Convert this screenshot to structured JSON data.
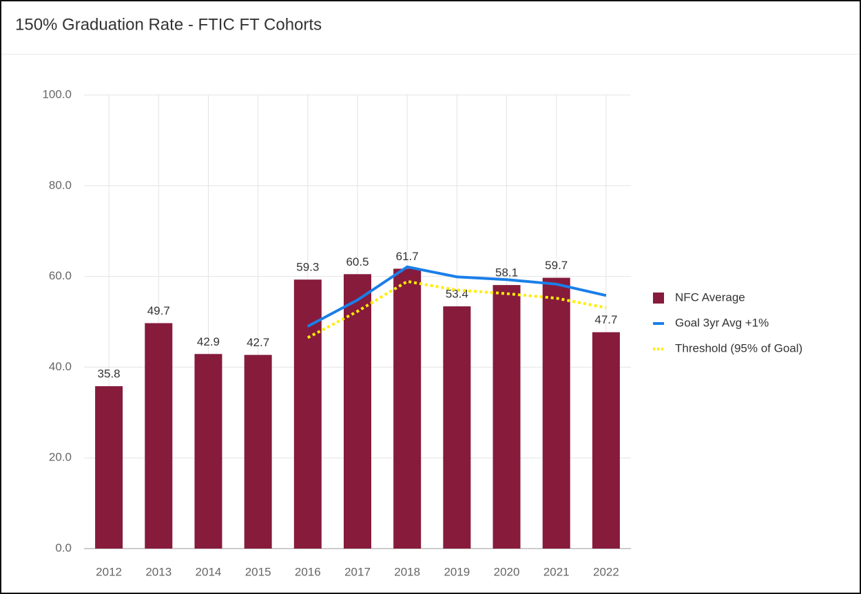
{
  "chart_data": {
    "type": "bar",
    "title": "150% Graduation Rate - FTIC FT Cohorts",
    "categories": [
      "2012",
      "2013",
      "2014",
      "2015",
      "2016",
      "2017",
      "2018",
      "2019",
      "2020",
      "2021",
      "2022"
    ],
    "series": [
      {
        "name": "NFC Average",
        "type": "bar",
        "color": "#861b3c",
        "values": [
          35.8,
          49.7,
          42.9,
          42.7,
          59.3,
          60.5,
          61.7,
          53.4,
          58.1,
          59.7,
          47.7
        ]
      },
      {
        "name": "Goal 3yr Avg +1%",
        "type": "line",
        "color": "#1a7fe8",
        "values": [
          null,
          null,
          null,
          null,
          49.0,
          54.8,
          62.1,
          59.9,
          59.3,
          58.3,
          55.8
        ]
      },
      {
        "name": "Threshold (95% of Goal)",
        "type": "line",
        "color": "#ffee00",
        "dashed": true,
        "values": [
          null,
          null,
          null,
          null,
          46.5,
          52.3,
          58.9,
          57.0,
          56.2,
          55.2,
          53.1
        ]
      }
    ],
    "ylim": [
      0,
      100
    ],
    "yticks": [
      {
        "value": 0,
        "label": "0.0"
      },
      {
        "value": 20,
        "label": "20.0"
      },
      {
        "value": 40,
        "label": "40.0"
      },
      {
        "value": 60,
        "label": "60.0"
      },
      {
        "value": 80,
        "label": "80.0"
      },
      {
        "value": 100,
        "label": "100.0"
      }
    ],
    "grid": true,
    "legend": "right"
  }
}
